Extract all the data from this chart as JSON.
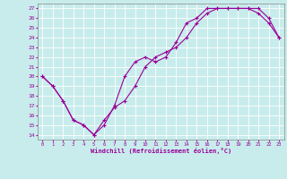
{
  "xlabel": "Windchill (Refroidissement éolien,°C)",
  "background_color": "#c8ecec",
  "line_color": "#990099",
  "xlim": [
    -0.5,
    23.5
  ],
  "ylim": [
    13.5,
    27.5
  ],
  "xticks": [
    0,
    1,
    2,
    3,
    4,
    5,
    6,
    7,
    8,
    9,
    10,
    11,
    12,
    13,
    14,
    15,
    16,
    17,
    18,
    19,
    20,
    21,
    22,
    23
  ],
  "yticks": [
    14,
    15,
    16,
    17,
    18,
    19,
    20,
    21,
    22,
    23,
    24,
    25,
    26,
    27
  ],
  "line1_x": [
    0,
    1,
    2,
    3,
    4,
    5,
    6,
    7,
    8,
    9,
    10,
    11,
    12,
    13,
    14,
    15,
    16,
    17,
    18,
    19,
    20,
    21,
    22,
    23
  ],
  "line1_y": [
    20,
    19,
    17.5,
    15.5,
    15,
    14,
    15,
    17,
    20,
    21.5,
    22,
    21.5,
    22,
    23.5,
    25.5,
    26,
    27,
    27,
    27,
    27,
    27,
    26.5,
    25.5,
    24
  ],
  "line2_x": [
    0,
    1,
    2,
    3,
    4,
    5,
    6,
    7,
    8,
    9,
    10,
    11,
    12,
    13,
    14,
    15,
    16,
    17,
    18,
    19,
    20,
    21,
    22,
    23
  ],
  "line2_y": [
    20,
    19,
    17.5,
    15.5,
    15,
    14,
    15.5,
    16.8,
    17.5,
    19,
    21,
    22,
    22.5,
    23,
    24,
    25.5,
    26.5,
    27,
    27,
    27,
    27,
    27,
    26,
    24
  ],
  "grid_color": "#aaaaaa",
  "grid_bg": "#c8ecec"
}
